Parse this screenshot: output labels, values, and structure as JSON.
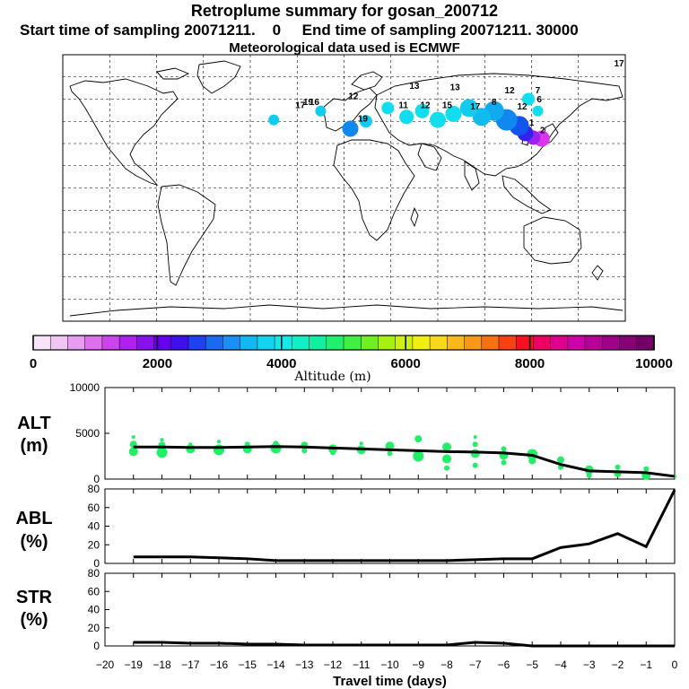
{
  "header": {
    "title": "Retroplume summary for gosan_200712",
    "sampling_line": "Start time of sampling 20071211.    0     End time of sampling 20071211. 30000",
    "met_line": "Meteorological data used is ECMWF"
  },
  "colorbar": {
    "label": "Altitude (m)",
    "ticks": [
      "0",
      "2000",
      "4000",
      "6000",
      "8000",
      "10000"
    ],
    "colors": [
      "#f8e4f8",
      "#f2c6f4",
      "#e89cf0",
      "#de70ee",
      "#cc44ee",
      "#b020f0",
      "#8a10f0",
      "#6600ee",
      "#3f0fee",
      "#2040f4",
      "#1a6af4",
      "#1a90f4",
      "#10b8f4",
      "#10d4f0",
      "#10eae8",
      "#10f0c4",
      "#10f0a0",
      "#20f070",
      "#40f040",
      "#70f020",
      "#a8f010",
      "#d0f010",
      "#f0f010",
      "#f8d818",
      "#f8b818",
      "#f89818",
      "#f87010",
      "#f84010",
      "#f81020",
      "#f00060",
      "#e00090",
      "#d000a8",
      "#b80098",
      "#a00088",
      "#880078",
      "#700068"
    ]
  },
  "map": {
    "particles": [
      {
        "lon": 126.5,
        "lat": 33.3,
        "color": "#dd33ee",
        "r": 9
      },
      {
        "lon": 121,
        "lat": 34,
        "color": "#9922ee",
        "r": 8
      },
      {
        "lon": 116,
        "lat": 37,
        "color": "#3322ee",
        "r": 9
      },
      {
        "lon": 112,
        "lat": 42,
        "color": "#1155ee",
        "r": 11
      },
      {
        "lon": 104,
        "lat": 46,
        "color": "#1188ee",
        "r": 12
      },
      {
        "lon": 96,
        "lat": 52,
        "color": "#11aaee",
        "r": 11
      },
      {
        "lon": 88,
        "lat": 48,
        "color": "#11bbee",
        "r": 10
      },
      {
        "lon": 80,
        "lat": 54,
        "color": "#11ccee",
        "r": 10
      },
      {
        "lon": 70,
        "lat": 50,
        "color": "#11ddee",
        "r": 9
      },
      {
        "lon": 60,
        "lat": 46,
        "color": "#11ddee",
        "r": 9
      },
      {
        "lon": 50,
        "lat": 52,
        "color": "#11ddee",
        "r": 8
      },
      {
        "lon": 40,
        "lat": 48,
        "color": "#11ddee",
        "r": 8
      },
      {
        "lon": 28,
        "lat": 54,
        "color": "#11ddee",
        "r": 7
      },
      {
        "lon": 14,
        "lat": 45,
        "color": "#11ccee",
        "r": 7
      },
      {
        "lon": 4,
        "lat": 40,
        "color": "#1188ee",
        "r": 9
      },
      {
        "lon": -15,
        "lat": 52,
        "color": "#11ccee",
        "r": 6
      },
      {
        "lon": -45,
        "lat": 46,
        "color": "#11ccee",
        "r": 6
      },
      {
        "lon": 118,
        "lat": 60,
        "color": "#11ddee",
        "r": 7
      },
      {
        "lon": 124,
        "lat": 52,
        "color": "#11ddee",
        "r": 6
      }
    ],
    "labels": [
      {
        "lon": 106,
        "lat": 64,
        "text": "12"
      },
      {
        "lon": 124,
        "lat": 64,
        "text": "7"
      },
      {
        "lon": 125,
        "lat": 58,
        "text": "6"
      },
      {
        "lon": 71,
        "lat": 66,
        "text": "13"
      },
      {
        "lon": 66,
        "lat": 54,
        "text": "15"
      },
      {
        "lon": 84,
        "lat": 53,
        "text": "17"
      },
      {
        "lon": 52,
        "lat": 54,
        "text": "12"
      },
      {
        "lon": 38,
        "lat": 54,
        "text": "11"
      },
      {
        "lon": 12,
        "lat": 45,
        "text": "19"
      },
      {
        "lon": -23,
        "lat": 56,
        "text": "19"
      },
      {
        "lon": -19,
        "lat": 56,
        "text": "16"
      },
      {
        "lon": -28,
        "lat": 54,
        "text": "17"
      },
      {
        "lon": 6,
        "lat": 60,
        "text": "12"
      },
      {
        "lon": 45,
        "lat": 67,
        "text": "13"
      },
      {
        "lon": 176,
        "lat": 82,
        "text": "17"
      },
      {
        "lon": 114,
        "lat": 53,
        "text": "12"
      },
      {
        "lon": 120,
        "lat": 42,
        "text": "1"
      },
      {
        "lon": 127,
        "lat": 37,
        "text": "2"
      },
      {
        "lon": 96,
        "lat": 56,
        "text": "8"
      }
    ]
  },
  "chart_data": [
    {
      "type": "scatter",
      "panel": "ALT",
      "ylabel": "ALT\n(m)",
      "xlabel": "Travel time (days)",
      "xlim": [
        -20,
        0
      ],
      "ylim": [
        0,
        10000
      ],
      "yticks": [
        0,
        5000,
        10000
      ],
      "xticks": [
        -20,
        -19,
        -18,
        -17,
        -16,
        -15,
        -14,
        -13,
        -12,
        -11,
        -10,
        -9,
        -8,
        -7,
        -6,
        -5,
        -4,
        -3,
        -2,
        -1,
        0
      ],
      "mean_line": {
        "x": [
          -19,
          -18,
          -17,
          -16,
          -15,
          -14,
          -13,
          -12,
          -11,
          -10,
          -9,
          -8,
          -7,
          -6,
          -5,
          -4,
          -3,
          -2,
          -1,
          0
        ],
        "y": [
          3500,
          3500,
          3450,
          3450,
          3500,
          3550,
          3500,
          3400,
          3300,
          3200,
          3100,
          3000,
          2950,
          2850,
          2600,
          1600,
          900,
          800,
          700,
          300
        ]
      },
      "points": [
        {
          "x": -19,
          "y": 3000,
          "r": 5
        },
        {
          "x": -19,
          "y": 3800,
          "r": 4
        },
        {
          "x": -19,
          "y": 4600,
          "r": 2
        },
        {
          "x": -18,
          "y": 2900,
          "r": 6
        },
        {
          "x": -18,
          "y": 3700,
          "r": 4
        },
        {
          "x": -18,
          "y": 4300,
          "r": 2
        },
        {
          "x": -17,
          "y": 3300,
          "r": 5
        },
        {
          "x": -17,
          "y": 3800,
          "r": 2
        },
        {
          "x": -16,
          "y": 3200,
          "r": 6
        },
        {
          "x": -16,
          "y": 4100,
          "r": 2
        },
        {
          "x": -15,
          "y": 3300,
          "r": 5
        },
        {
          "x": -15,
          "y": 3800,
          "r": 3
        },
        {
          "x": -14,
          "y": 3400,
          "r": 6
        },
        {
          "x": -14,
          "y": 3900,
          "r": 3
        },
        {
          "x": -13,
          "y": 3700,
          "r": 4
        },
        {
          "x": -13,
          "y": 3100,
          "r": 3
        },
        {
          "x": -12,
          "y": 3300,
          "r": 5
        },
        {
          "x": -12,
          "y": 2900,
          "r": 3
        },
        {
          "x": -11,
          "y": 3200,
          "r": 5
        },
        {
          "x": -11,
          "y": 3900,
          "r": 2
        },
        {
          "x": -10,
          "y": 3600,
          "r": 5
        },
        {
          "x": -10,
          "y": 2800,
          "r": 3
        },
        {
          "x": -9,
          "y": 2500,
          "r": 6
        },
        {
          "x": -9,
          "y": 4400,
          "r": 4
        },
        {
          "x": -8,
          "y": 3500,
          "r": 5
        },
        {
          "x": -8,
          "y": 2200,
          "r": 5
        },
        {
          "x": -8,
          "y": 1200,
          "r": 3
        },
        {
          "x": -7,
          "y": 3800,
          "r": 3
        },
        {
          "x": -7,
          "y": 2800,
          "r": 5
        },
        {
          "x": -7,
          "y": 1500,
          "r": 3
        },
        {
          "x": -7,
          "y": 4600,
          "r": 2
        },
        {
          "x": -6,
          "y": 2600,
          "r": 5
        },
        {
          "x": -6,
          "y": 1800,
          "r": 3
        },
        {
          "x": -6,
          "y": 3300,
          "r": 3
        },
        {
          "x": -5,
          "y": 2700,
          "r": 6
        },
        {
          "x": -5,
          "y": 2000,
          "r": 4
        },
        {
          "x": -4,
          "y": 2100,
          "r": 4
        },
        {
          "x": -4,
          "y": 1300,
          "r": 3
        },
        {
          "x": -3,
          "y": 1000,
          "r": 5
        },
        {
          "x": -3,
          "y": 400,
          "r": 3
        },
        {
          "x": -2,
          "y": 600,
          "r": 4
        },
        {
          "x": -2,
          "y": 1300,
          "r": 3
        },
        {
          "x": -1,
          "y": 400,
          "r": 5
        },
        {
          "x": -1,
          "y": 1100,
          "r": 3
        },
        {
          "x": 0,
          "y": 300,
          "r": 2
        }
      ]
    },
    {
      "type": "line",
      "panel": "ABL",
      "ylabel": "ABL\n(%)",
      "ylim": [
        0,
        80
      ],
      "yticks": [
        0,
        20,
        40,
        60,
        80
      ],
      "x": [
        -19,
        -18,
        -17,
        -16,
        -15,
        -14,
        -13,
        -12,
        -11,
        -10,
        -9,
        -8,
        -7,
        -6,
        -5,
        -4,
        -3,
        -2,
        -1,
        0
      ],
      "y": [
        7,
        7,
        7,
        6,
        5,
        3,
        3,
        3,
        3,
        3,
        3,
        3,
        4,
        5,
        5,
        17,
        21,
        32,
        18,
        79
      ]
    },
    {
      "type": "line",
      "panel": "STR",
      "ylabel": "STR\n(%)",
      "ylim": [
        0,
        80
      ],
      "yticks": [
        0,
        20,
        40,
        60,
        80
      ],
      "x": [
        -19,
        -18,
        -17,
        -16,
        -15,
        -14,
        -13,
        -12,
        -11,
        -10,
        -9,
        -8,
        -7,
        -6,
        -5,
        -4,
        -3,
        -2,
        -1,
        0
      ],
      "y": [
        4,
        4,
        3,
        3,
        2,
        2,
        1,
        1,
        1,
        1,
        1,
        1,
        4,
        3,
        0,
        0,
        0,
        0,
        0,
        0
      ]
    }
  ]
}
